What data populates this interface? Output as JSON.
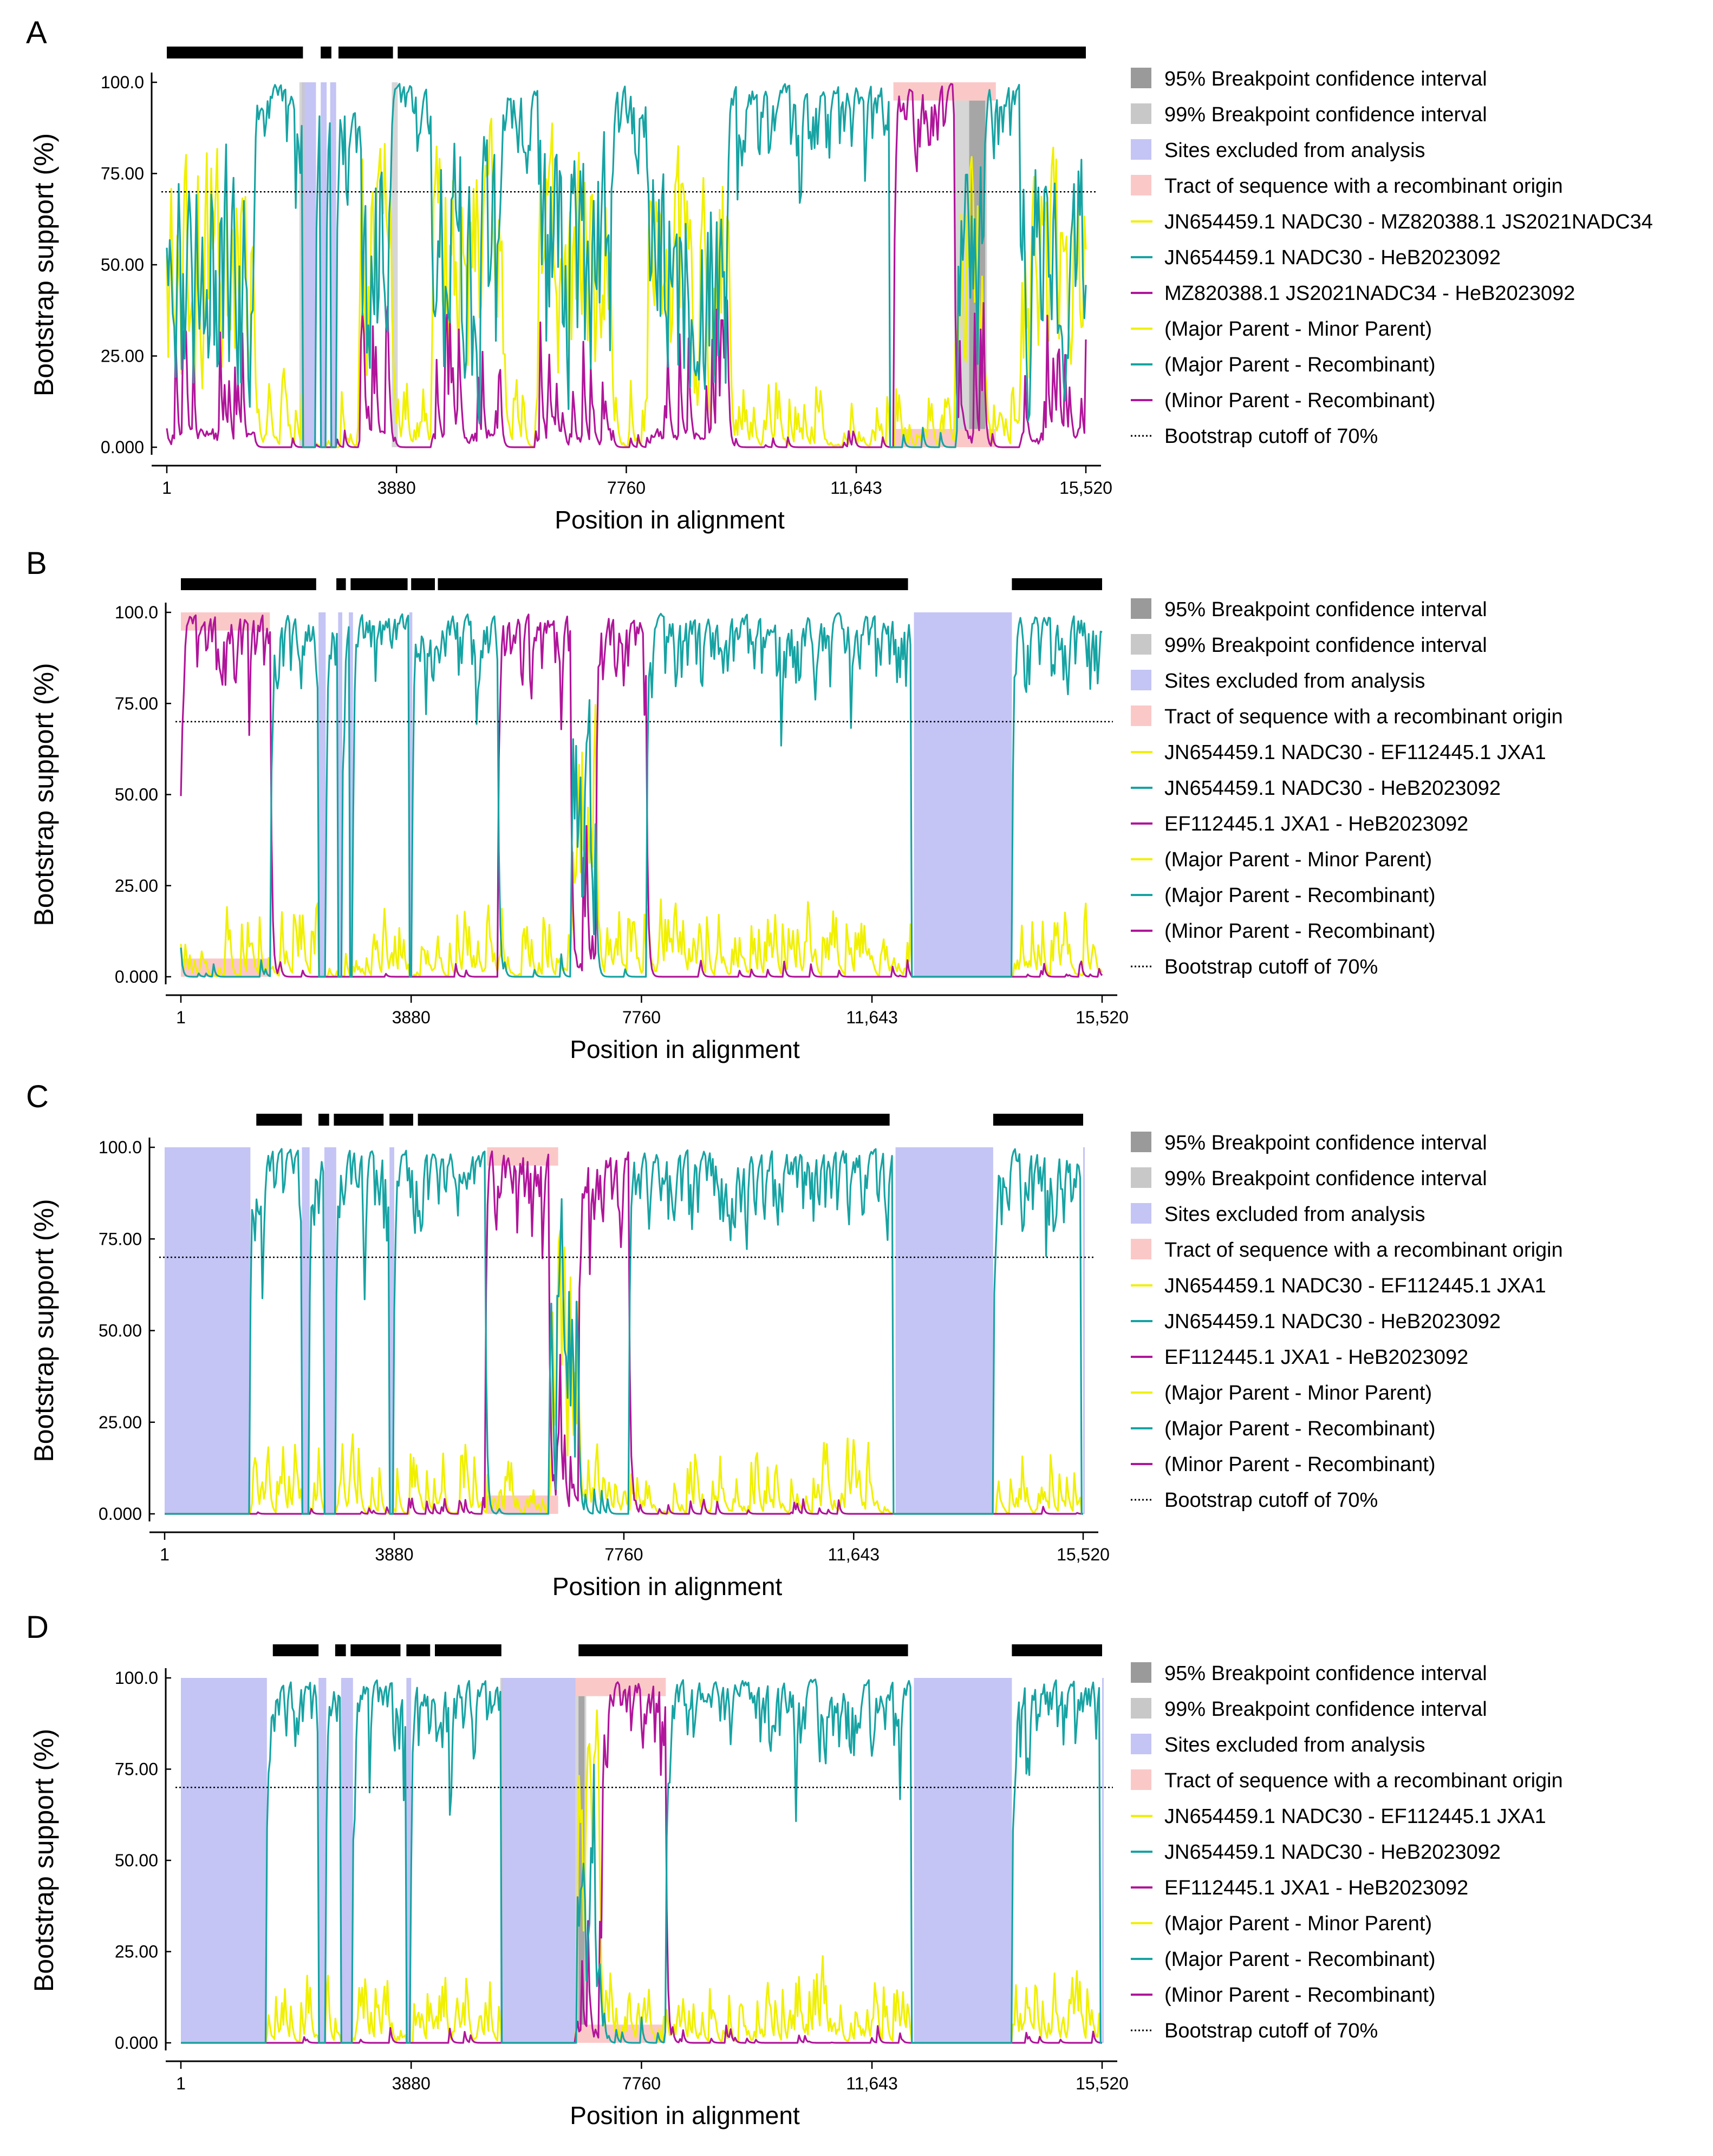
{
  "figure": {
    "colors": {
      "ci95": "#9a9a9a",
      "ci99": "#c8c8c8",
      "excluded": "#c4c4f5",
      "tract": "#fbc8c8",
      "yellow": "#f0f000",
      "teal": "#17a3a3",
      "magenta": "#b0159a",
      "cutoff": "#000000",
      "bar": "#000000"
    }
  },
  "chart_data": [
    {
      "panel": "A",
      "type": "line",
      "xlabel": "Position in alignment",
      "ylabel": "Bootstrap support (%)",
      "xlim": [
        1,
        15520
      ],
      "ylim": [
        0,
        100
      ],
      "xticks": [
        1,
        3880,
        7760,
        11643,
        15520
      ],
      "xtick_labels": [
        "1",
        "3880",
        "7760",
        "11,643",
        "15,520"
      ],
      "yticks": [
        0,
        25,
        50,
        75,
        100
      ],
      "ytick_labels": [
        "0.000",
        "25.00",
        "50.00",
        "75.00",
        "100.0"
      ],
      "cutoff": 70,
      "bars": [
        [
          1,
          2300
        ],
        [
          2600,
          2780
        ],
        [
          2900,
          3820
        ],
        [
          3900,
          15520
        ]
      ],
      "excluded": [
        [
          2280,
          2520
        ],
        [
          2600,
          2700
        ],
        [
          2760,
          2860
        ]
      ],
      "ci95": [
        [
          13550,
          13820
        ]
      ],
      "ci99": [
        [
          13300,
          13850
        ],
        [
          2240,
          2330
        ],
        [
          3800,
          3900
        ]
      ],
      "tract": [
        12270,
        14000
      ],
      "segments": [
        {
          "x1": 1,
          "x2": 1500,
          "dom": "mixed"
        },
        {
          "x1": 1500,
          "x2": 2220,
          "dom": "teal"
        },
        {
          "x1": 2220,
          "x2": 3230,
          "dom": "teal"
        },
        {
          "x1": 3230,
          "x2": 3800,
          "dom": "mixed"
        },
        {
          "x1": 3800,
          "x2": 4480,
          "dom": "teal"
        },
        {
          "x1": 4480,
          "x2": 5680,
          "dom": "mixed"
        },
        {
          "x1": 5680,
          "x2": 6260,
          "dom": "teal"
        },
        {
          "x1": 6260,
          "x2": 7500,
          "dom": "mixed"
        },
        {
          "x1": 7500,
          "x2": 8100,
          "dom": "teal"
        },
        {
          "x1": 8100,
          "x2": 9500,
          "dom": "mixed"
        },
        {
          "x1": 9500,
          "x2": 10600,
          "dom": "teal"
        },
        {
          "x1": 10600,
          "x2": 12200,
          "dom": "teal"
        },
        {
          "x1": 12270,
          "x2": 13300,
          "dom": "magenta"
        },
        {
          "x1": 13300,
          "x2": 13800,
          "dom": "mixed"
        },
        {
          "x1": 13800,
          "x2": 14400,
          "dom": "teal"
        },
        {
          "x1": 14400,
          "x2": 15520,
          "dom": "mixed"
        }
      ],
      "legend": [
        {
          "kind": "box",
          "color": "ci95",
          "label": "95% Breakpoint confidence interval"
        },
        {
          "kind": "box",
          "color": "ci99",
          "label": "99% Breakpoint confidence interval"
        },
        {
          "kind": "box",
          "color": "excluded",
          "label": "Sites excluded from analysis"
        },
        {
          "kind": "box",
          "color": "tract",
          "label": "Tract of sequence with a recombinant origin"
        },
        {
          "kind": "line",
          "color": "yellow",
          "label": "JN654459.1 NADC30 - MZ820388.1 JS2021NADC34"
        },
        {
          "kind": "line",
          "color": "teal",
          "label": "JN654459.1 NADC30 - HeB2023092"
        },
        {
          "kind": "line",
          "color": "magenta",
          "label": "MZ820388.1 JS2021NADC34 - HeB2023092"
        },
        {
          "kind": "line",
          "color": "yellow",
          "label": "(Major Parent - Minor Parent)"
        },
        {
          "kind": "line",
          "color": "teal",
          "label": "(Major Parent - Recombinant)"
        },
        {
          "kind": "line",
          "color": "magenta",
          "label": "(Minor Parent - Recombinant)"
        },
        {
          "kind": "dots",
          "color": "cutoff",
          "label": "Bootstrap cutoff of 70%"
        }
      ]
    },
    {
      "panel": "B",
      "type": "line",
      "xlabel": "Position in alignment",
      "ylabel": "Bootstrap support (%)",
      "xlim": [
        1,
        15520
      ],
      "ylim": [
        0,
        100
      ],
      "xticks": [
        1,
        3880,
        7760,
        11643,
        15520
      ],
      "xtick_labels": [
        "1",
        "3880",
        "7760",
        "11,643",
        "15,520"
      ],
      "yticks": [
        0,
        25,
        50,
        75,
        100
      ],
      "ytick_labels": [
        "0.000",
        "25.00",
        "50.00",
        "75.00",
        "100.0"
      ],
      "cutoff": 70,
      "bars": [
        [
          1,
          2280
        ],
        [
          2620,
          2780
        ],
        [
          2860,
          3820
        ],
        [
          3880,
          4280
        ],
        [
          4330,
          12250
        ],
        [
          14000,
          15520
        ]
      ],
      "excluded": [
        [
          2320,
          2440
        ],
        [
          2650,
          2720
        ],
        [
          2830,
          2900
        ],
        [
          3850,
          3900
        ],
        [
          12350,
          14000
        ]
      ],
      "ci95": [],
      "ci99": [],
      "tract": [
        1,
        1500
      ],
      "segments": [
        {
          "x1": 1,
          "x2": 1520,
          "dom": "magenta"
        },
        {
          "x1": 1520,
          "x2": 2350,
          "dom": "teal"
        },
        {
          "x1": 2350,
          "x2": 2850,
          "dom": "teal"
        },
        {
          "x1": 2850,
          "x2": 3800,
          "dom": "teal"
        },
        {
          "x1": 3800,
          "x2": 5350,
          "dom": "teal"
        },
        {
          "x1": 5350,
          "x2": 6580,
          "dom": "magenta"
        },
        {
          "x1": 6580,
          "x2": 7000,
          "dom": "mixed"
        },
        {
          "x1": 7000,
          "x2": 7850,
          "dom": "magenta"
        },
        {
          "x1": 7850,
          "x2": 12300,
          "dom": "teal"
        },
        {
          "x1": 14000,
          "x2": 15520,
          "dom": "teal"
        }
      ],
      "legend": [
        {
          "kind": "box",
          "color": "ci95",
          "label": "95% Breakpoint confidence interval"
        },
        {
          "kind": "box",
          "color": "ci99",
          "label": "99% Breakpoint confidence interval"
        },
        {
          "kind": "box",
          "color": "excluded",
          "label": "Sites excluded from analysis"
        },
        {
          "kind": "box",
          "color": "tract",
          "label": "Tract of sequence with a recombinant origin"
        },
        {
          "kind": "line",
          "color": "yellow",
          "label": "JN654459.1 NADC30 - EF112445.1 JXA1"
        },
        {
          "kind": "line",
          "color": "teal",
          "label": "JN654459.1 NADC30 - HeB2023092"
        },
        {
          "kind": "line",
          "color": "magenta",
          "label": "EF112445.1 JXA1 - HeB2023092"
        },
        {
          "kind": "line",
          "color": "yellow",
          "label": "(Major Parent - Minor Parent)"
        },
        {
          "kind": "line",
          "color": "teal",
          "label": "(Major Parent - Recombinant)"
        },
        {
          "kind": "line",
          "color": "magenta",
          "label": "(Minor Parent - Recombinant)"
        },
        {
          "kind": "dots",
          "color": "cutoff",
          "label": "Bootstrap cutoff of 70%"
        }
      ]
    },
    {
      "panel": "C",
      "type": "line",
      "xlabel": "Position in alignment",
      "ylabel": "Bootstrap support (%)",
      "xlim": [
        1,
        15520
      ],
      "ylim": [
        0,
        100
      ],
      "xticks": [
        1,
        3880,
        7760,
        11643,
        15520
      ],
      "xtick_labels": [
        "1",
        "3880",
        "7760",
        "11,643",
        "15,520"
      ],
      "yticks": [
        0,
        25,
        50,
        75,
        100
      ],
      "ytick_labels": [
        "0.000",
        "25.00",
        "50.00",
        "75.00",
        "100.0"
      ],
      "cutoff": 70,
      "bars": [
        [
          1550,
          2320
        ],
        [
          2600,
          2780
        ],
        [
          2860,
          3700
        ],
        [
          3800,
          4200
        ],
        [
          4280,
          12250
        ],
        [
          14000,
          15520
        ]
      ],
      "excluded": [
        [
          1,
          1450
        ],
        [
          2320,
          2450
        ],
        [
          2700,
          2900
        ],
        [
          3800,
          3880
        ],
        [
          12350,
          14000
        ],
        [
          15520,
          15520
        ]
      ],
      "ci95": [],
      "ci99": [],
      "tract": [
        5450,
        6650
      ],
      "segments": [
        {
          "x1": 1450,
          "x2": 2320,
          "dom": "teal"
        },
        {
          "x1": 2450,
          "x2": 2700,
          "dom": "teal"
        },
        {
          "x1": 2900,
          "x2": 3800,
          "dom": "teal"
        },
        {
          "x1": 3880,
          "x2": 5420,
          "dom": "teal"
        },
        {
          "x1": 5420,
          "x2": 6500,
          "dom": "magenta"
        },
        {
          "x1": 6500,
          "x2": 7000,
          "dom": "mixed"
        },
        {
          "x1": 7000,
          "x2": 7850,
          "dom": "magenta"
        },
        {
          "x1": 7850,
          "x2": 12300,
          "dom": "teal"
        },
        {
          "x1": 14000,
          "x2": 15480,
          "dom": "teal"
        }
      ],
      "legend": [
        {
          "kind": "box",
          "color": "ci95",
          "label": "95% Breakpoint confidence interval"
        },
        {
          "kind": "box",
          "color": "ci99",
          "label": "99% Breakpoint confidence interval"
        },
        {
          "kind": "box",
          "color": "excluded",
          "label": "Sites excluded from analysis"
        },
        {
          "kind": "box",
          "color": "tract",
          "label": "Tract of sequence with a recombinant origin"
        },
        {
          "kind": "line",
          "color": "yellow",
          "label": "JN654459.1 NADC30 - EF112445.1 JXA1"
        },
        {
          "kind": "line",
          "color": "teal",
          "label": "JN654459.1 NADC30 - HeB2023092"
        },
        {
          "kind": "line",
          "color": "magenta",
          "label": "EF112445.1 JXA1 - HeB2023092"
        },
        {
          "kind": "line",
          "color": "yellow",
          "label": "(Major Parent - Minor Parent)"
        },
        {
          "kind": "line",
          "color": "teal",
          "label": "(Major Parent - Recombinant)"
        },
        {
          "kind": "line",
          "color": "magenta",
          "label": "(Minor Parent - Recombinant)"
        },
        {
          "kind": "dots",
          "color": "cutoff",
          "label": "Bootstrap cutoff of 70%"
        }
      ]
    },
    {
      "panel": "D",
      "type": "line",
      "xlabel": "Position in alignment",
      "ylabel": "Bootstrap support (%)",
      "xlim": [
        1,
        15520
      ],
      "ylim": [
        0,
        100
      ],
      "xticks": [
        1,
        3880,
        7760,
        11643,
        15520
      ],
      "xtick_labels": [
        "1",
        "3880",
        "7760",
        "11,643",
        "15,520"
      ],
      "yticks": [
        0,
        25,
        50,
        75,
        100
      ],
      "ytick_labels": [
        "0.000",
        "25.00",
        "50.00",
        "75.00",
        "100.0"
      ],
      "cutoff": 70,
      "bars": [
        [
          1550,
          2320
        ],
        [
          2600,
          2780
        ],
        [
          2860,
          3700
        ],
        [
          3800,
          4200
        ],
        [
          4280,
          5400
        ],
        [
          6700,
          12250
        ],
        [
          14000,
          15520
        ]
      ],
      "excluded": [
        [
          1,
          1450
        ],
        [
          2320,
          2450
        ],
        [
          2700,
          2900
        ],
        [
          3800,
          3880
        ],
        [
          5400,
          6650
        ],
        [
          12350,
          14000
        ],
        [
          15520,
          15520
        ]
      ],
      "ci95": [
        [
          6700,
          6800
        ]
      ],
      "ci99": [
        [
          5380,
          5420
        ],
        [
          6650,
          6830
        ]
      ],
      "tract": [
        6650,
        8170
      ],
      "segments": [
        {
          "x1": 1450,
          "x2": 2320,
          "dom": "teal"
        },
        {
          "x1": 2450,
          "x2": 2700,
          "dom": "teal"
        },
        {
          "x1": 2900,
          "x2": 3800,
          "dom": "teal"
        },
        {
          "x1": 3880,
          "x2": 5400,
          "dom": "teal"
        },
        {
          "x1": 6650,
          "x2": 7100,
          "dom": "mixed"
        },
        {
          "x1": 7100,
          "x2": 8170,
          "dom": "magenta"
        },
        {
          "x1": 8170,
          "x2": 12300,
          "dom": "teal"
        },
        {
          "x1": 14000,
          "x2": 15480,
          "dom": "teal"
        }
      ],
      "legend": [
        {
          "kind": "box",
          "color": "ci95",
          "label": "95% Breakpoint confidence interval"
        },
        {
          "kind": "box",
          "color": "ci99",
          "label": "99% Breakpoint confidence interval"
        },
        {
          "kind": "box",
          "color": "excluded",
          "label": "Sites excluded from analysis"
        },
        {
          "kind": "box",
          "color": "tract",
          "label": "Tract of sequence with a recombinant origin"
        },
        {
          "kind": "line",
          "color": "yellow",
          "label": "JN654459.1 NADC30 - EF112445.1 JXA1"
        },
        {
          "kind": "line",
          "color": "teal",
          "label": "JN654459.1 NADC30 - HeB2023092"
        },
        {
          "kind": "line",
          "color": "magenta",
          "label": "EF112445.1 JXA1 - HeB2023092"
        },
        {
          "kind": "line",
          "color": "yellow",
          "label": "(Major Parent - Minor Parent)"
        },
        {
          "kind": "line",
          "color": "teal",
          "label": "(Major Parent - Recombinant)"
        },
        {
          "kind": "line",
          "color": "magenta",
          "label": "(Minor Parent - Recombinant)"
        },
        {
          "kind": "dots",
          "color": "cutoff",
          "label": "Bootstrap cutoff of 70%"
        }
      ]
    }
  ]
}
